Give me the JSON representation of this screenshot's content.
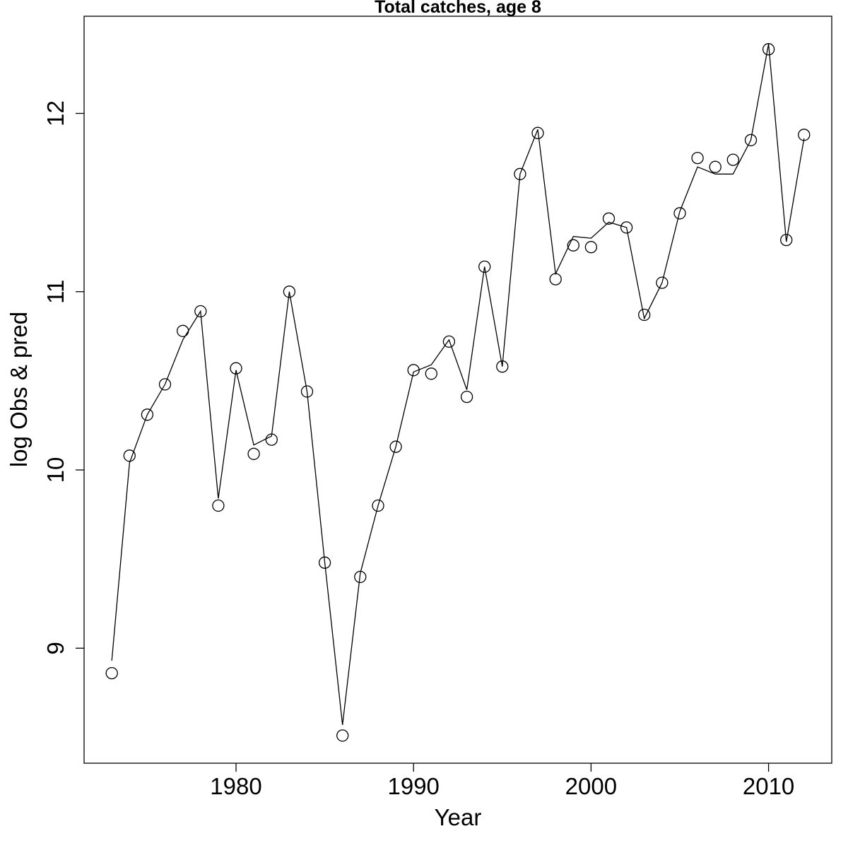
{
  "chart_data": {
    "type": "line",
    "title": "Total catches, age 8",
    "xlabel": "Year",
    "ylabel": "log Obs & pred",
    "x": [
      1973,
      1974,
      1975,
      1976,
      1977,
      1978,
      1979,
      1980,
      1981,
      1982,
      1983,
      1984,
      1985,
      1986,
      1987,
      1988,
      1989,
      1990,
      1991,
      1992,
      1993,
      1994,
      1995,
      1996,
      1997,
      1998,
      1999,
      2000,
      2001,
      2002,
      2003,
      2004,
      2005,
      2006,
      2007,
      2008,
      2009,
      2010,
      2011,
      2012
    ],
    "series": [
      {
        "name": "observed",
        "marker": "open-circle",
        "values": [
          8.86,
          10.08,
          10.31,
          10.48,
          10.78,
          10.89,
          9.8,
          10.57,
          10.09,
          10.17,
          11.0,
          10.44,
          9.48,
          8.51,
          9.4,
          9.8,
          10.13,
          10.56,
          10.54,
          10.72,
          10.41,
          11.14,
          10.58,
          11.66,
          11.89,
          11.07,
          11.26,
          11.25,
          11.41,
          11.36,
          10.87,
          11.05,
          11.44,
          11.75,
          11.7,
          11.74,
          11.85,
          12.36,
          11.29,
          11.88
        ]
      },
      {
        "name": "predicted",
        "marker": "line",
        "values": [
          8.93,
          10.04,
          10.31,
          10.48,
          10.73,
          10.89,
          9.84,
          10.56,
          10.14,
          10.19,
          11.0,
          10.44,
          9.48,
          8.57,
          9.42,
          9.8,
          10.13,
          10.55,
          10.59,
          10.73,
          10.45,
          11.14,
          10.58,
          11.66,
          11.91,
          11.1,
          11.31,
          11.3,
          11.39,
          11.36,
          10.85,
          11.05,
          11.45,
          11.7,
          11.66,
          11.66,
          11.85,
          12.39,
          11.28,
          11.86
        ]
      }
    ],
    "xticks": [
      1980,
      1990,
      2000,
      2010
    ],
    "yticks": [
      9,
      10,
      11,
      12
    ],
    "xlim": [
      1971.44,
      2013.56
    ],
    "ylim": [
      8.355,
      12.545
    ],
    "grid": false,
    "legend_position": "none",
    "line_color": "#000000",
    "marker_color": "#000000",
    "background_color": "#ffffff"
  }
}
